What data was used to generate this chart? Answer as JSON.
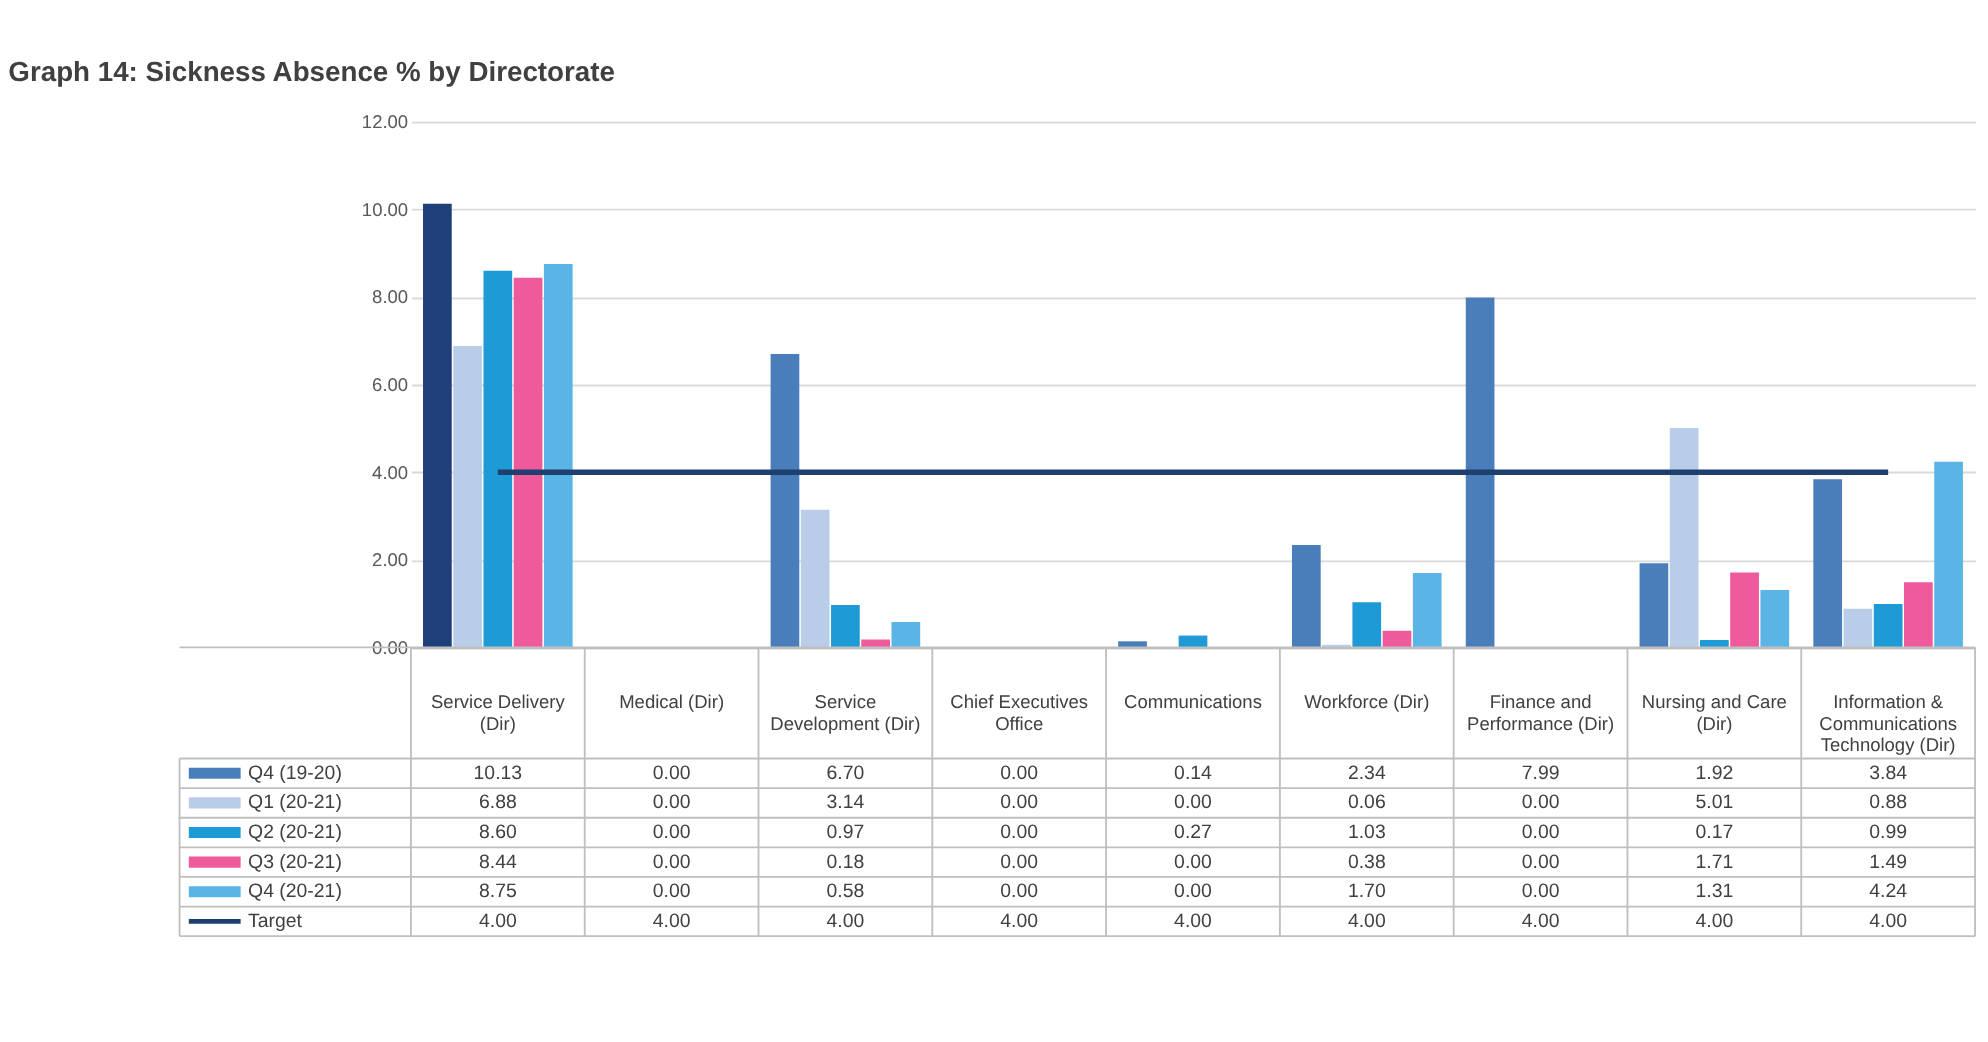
{
  "chart_data": {
    "type": "bar",
    "title": "Graph 14: Sickness Absence % by Directorate",
    "categories": [
      "Service Delivery (Dir)",
      "Medical (Dir)",
      "Service Development (Dir)",
      "Chief Executives Office",
      "Communications",
      "Workforce (Dir)",
      "Finance and Performance (Dir)",
      "Nursing and Care (Dir)",
      "Information & Communications Technology (Dir)"
    ],
    "series": [
      {
        "name": "Q4 (19-20)",
        "color": "#4a7ebb",
        "colors": [
          "#1f3f7a",
          "#4a7ebb",
          "#4a7ebb",
          "#4a7ebb",
          "#4a7ebb",
          "#4a7ebb",
          "#4a7ebb",
          "#4a7ebb",
          "#4a7ebb"
        ],
        "values": [
          10.13,
          0,
          6.7,
          0,
          0.14,
          2.34,
          7.99,
          1.92,
          3.84
        ],
        "value_labels": [
          "10.13",
          "0.00",
          "6.70",
          "0.00",
          "0.14",
          "2.34",
          "7.99",
          "1.92",
          "3.84"
        ]
      },
      {
        "name": "Q1 (20-21)",
        "color": "#b9cde8",
        "values": [
          6.88,
          0,
          3.14,
          0,
          0,
          0.06,
          0,
          5.01,
          0.88
        ],
        "value_labels": [
          "6.88",
          "0.00",
          "3.14",
          "0.00",
          "0.00",
          "0.06",
          "0.00",
          "5.01",
          "0.88"
        ]
      },
      {
        "name": "Q2 (20-21)",
        "color": "#1e9ad6",
        "values": [
          8.6,
          0,
          0.97,
          0,
          0.27,
          1.03,
          0,
          0.17,
          0.99
        ],
        "value_labels": [
          "8.60",
          "0.00",
          "0.97",
          "0.00",
          "0.27",
          "1.03",
          "0.00",
          "0.17",
          "0.99"
        ]
      },
      {
        "name": "Q3 (20-21)",
        "color": "#ef5a9d",
        "values": [
          8.44,
          0,
          0.18,
          0,
          0,
          0.38,
          0,
          1.71,
          1.49
        ],
        "value_labels": [
          "8.44",
          "0.00",
          "0.18",
          "0.00",
          "0.00",
          "0.38",
          "0.00",
          "1.71",
          "1.49"
        ]
      },
      {
        "name": "Q4 (20-21)",
        "color": "#5ab4e5",
        "values": [
          8.75,
          0,
          0.58,
          0,
          0,
          1.7,
          0,
          1.31,
          4.24
        ],
        "value_labels": [
          "8.75",
          "0.00",
          "0.58",
          "0.00",
          "0.00",
          "1.70",
          "0.00",
          "1.31",
          "4.24"
        ]
      },
      {
        "name": "Target",
        "type": "line",
        "color": "#1f3f6f",
        "values": [
          4,
          4,
          4,
          4,
          4,
          4,
          4,
          4,
          4
        ],
        "value_labels": [
          "4.00",
          "4.00",
          "4.00",
          "4.00",
          "4.00",
          "4.00",
          "4.00",
          "4.00",
          "4.00"
        ]
      }
    ],
    "ylim": [
      0,
      12
    ],
    "yticks": [
      {
        "value": 0,
        "label": "0.00"
      },
      {
        "value": 2,
        "label": "2.00"
      },
      {
        "value": 4,
        "label": "4.00"
      },
      {
        "value": 6,
        "label": "6.00"
      },
      {
        "value": 8,
        "label": "8.00"
      },
      {
        "value": 10,
        "label": "10.00"
      },
      {
        "value": 12,
        "label": "12.00"
      }
    ],
    "grid": "y",
    "legend": "bottom"
  }
}
